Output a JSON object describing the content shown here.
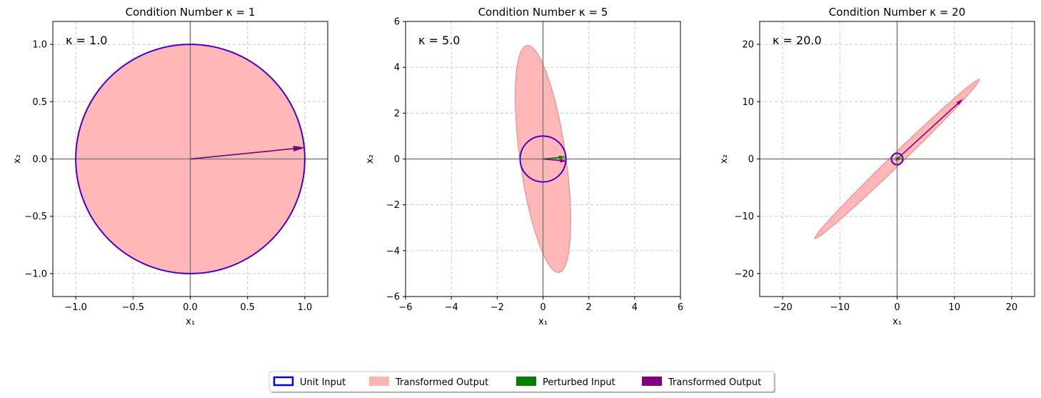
{
  "chart_data": [
    {
      "type": "line",
      "title": "Condition Number κ = 1",
      "xlabel": "x₁",
      "ylabel": "x₂",
      "xlim": [
        -1.2,
        1.2
      ],
      "ylim": [
        -1.2,
        1.2
      ],
      "xticks": [
        -1.0,
        -0.5,
        0.0,
        0.5,
        1.0
      ],
      "xtick_labels": [
        "−1.0",
        "−0.5",
        "0.0",
        "0.5",
        "1.0"
      ],
      "yticks": [
        -1.0,
        -0.5,
        0.0,
        0.5,
        1.0
      ],
      "ytick_labels": [
        "−1.0",
        "−0.5",
        "0.0",
        "0.5",
        "1.0"
      ],
      "grid": true,
      "annotation": "κ = 1.0",
      "unit_circle_radius": 1,
      "ellipse": {
        "semi_major": 1,
        "semi_minor": 1,
        "angle_deg": 0
      },
      "perturbed_input": [
        1.0,
        0.1
      ],
      "transformed_output": [
        1.0,
        0.1
      ]
    },
    {
      "type": "line",
      "title": "Condition Number κ = 5",
      "xlabel": "x₁",
      "ylabel": "x₂",
      "xlim": [
        -6,
        6
      ],
      "ylim": [
        -6,
        6
      ],
      "xticks": [
        -6,
        -4,
        -2,
        0,
        2,
        4,
        6
      ],
      "xtick_labels": [
        "−6",
        "−4",
        "−2",
        "0",
        "2",
        "4",
        "6"
      ],
      "yticks": [
        -6,
        -4,
        -2,
        0,
        2,
        4,
        6
      ],
      "ytick_labels": [
        "−6",
        "−4",
        "−2",
        "0",
        "2",
        "4",
        "6"
      ],
      "grid": true,
      "annotation": "κ = 5.0",
      "unit_circle_radius": 1,
      "ellipse": {
        "semi_major": 5,
        "semi_minor": 1,
        "angle_deg": 98
      },
      "perturbed_input": [
        1.0,
        0.1
      ],
      "transformed_output": [
        1.05,
        -0.1
      ]
    },
    {
      "type": "line",
      "title": "Condition Number κ = 20",
      "xlabel": "x₁",
      "ylabel": "x₂",
      "xlim": [
        -24,
        24
      ],
      "ylim": [
        -24,
        24
      ],
      "xticks": [
        -20,
        -10,
        0,
        10,
        20
      ],
      "xtick_labels": [
        "−20",
        "−10",
        "0",
        "10",
        "20"
      ],
      "yticks": [
        -20,
        -10,
        0,
        10,
        20
      ],
      "ytick_labels": [
        "−20",
        "−10",
        "0",
        "10",
        "20"
      ],
      "grid": true,
      "annotation": "κ = 20.0",
      "unit_circle_radius": 1,
      "ellipse": {
        "semi_major": 20,
        "semi_minor": 1,
        "angle_deg": 44
      },
      "perturbed_input": [
        1.0,
        0.1
      ],
      "transformed_output": [
        11.5,
        10.5
      ]
    }
  ],
  "legend": {
    "placement": "bottom-center",
    "items": [
      {
        "label": "Unit Input",
        "kind": "outline",
        "color": "#0000ff"
      },
      {
        "label": "Transformed Output",
        "kind": "fill",
        "color": "#ffb3b3"
      },
      {
        "label": "Perturbed Input",
        "kind": "fill",
        "color": "#008000"
      },
      {
        "label": "Transformed Output",
        "kind": "fill",
        "color": "#800080"
      }
    ]
  },
  "colors": {
    "unit_circle": "#4b00c8",
    "ellipse_fill": "#ffb3b3",
    "ellipse_edge": "#f08080",
    "perturbed": "#008000",
    "transformed": "#800080",
    "axis_line": "#808080",
    "grid": "#c8c8c8"
  }
}
